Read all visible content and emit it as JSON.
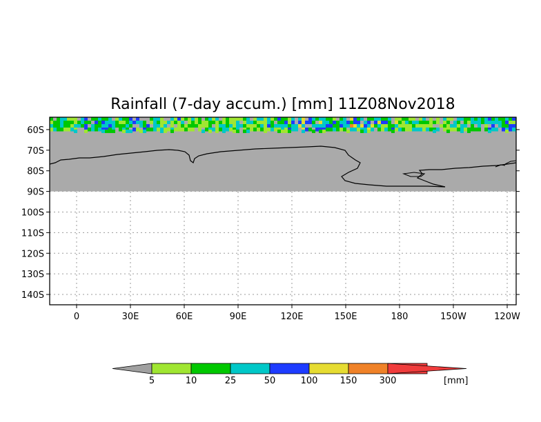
{
  "title": "Rainfall (7-day accum.) [mm] 11Z08Nov2018",
  "map": {
    "lon_min": -15,
    "lon_max": 245,
    "lat_top": -54,
    "lat_bottom": -145,
    "land_color": "#aaaaaa",
    "land_lat_edge": -60,
    "grid_lines": true
  },
  "y_ticks": [
    {
      "lat": -60,
      "label": "60S"
    },
    {
      "lat": -70,
      "label": "70S"
    },
    {
      "lat": -80,
      "label": "80S"
    },
    {
      "lat": -90,
      "label": "90S"
    },
    {
      "lat": -100,
      "label": "100S"
    },
    {
      "lat": -110,
      "label": "110S"
    },
    {
      "lat": -120,
      "label": "120S"
    },
    {
      "lat": -130,
      "label": "130S"
    },
    {
      "lat": -140,
      "label": "140S"
    }
  ],
  "x_ticks": [
    {
      "lon": 0,
      "label": "0"
    },
    {
      "lon": 30,
      "label": "30E"
    },
    {
      "lon": 60,
      "label": "60E"
    },
    {
      "lon": 90,
      "label": "90E"
    },
    {
      "lon": 120,
      "label": "120E"
    },
    {
      "lon": 150,
      "label": "150E"
    },
    {
      "lon": 180,
      "label": "180"
    },
    {
      "lon": 210,
      "label": "150W"
    },
    {
      "lon": 240,
      "label": "120W"
    }
  ],
  "colorbar": {
    "low_color": "#a0a0a0",
    "high_color": "#f03c3c",
    "bins": [
      {
        "color": "#a0e632",
        "label": "5"
      },
      {
        "color": "#00c800",
        "label": "10"
      },
      {
        "color": "#00c8c8",
        "label": "25"
      },
      {
        "color": "#1e3cff",
        "label": "50"
      },
      {
        "color": "#e6dc32",
        "label": "100"
      },
      {
        "color": "#f08228",
        "label": "150"
      },
      {
        "color": "#f03c3c",
        "label": "300"
      }
    ],
    "unit": "[mm]"
  }
}
